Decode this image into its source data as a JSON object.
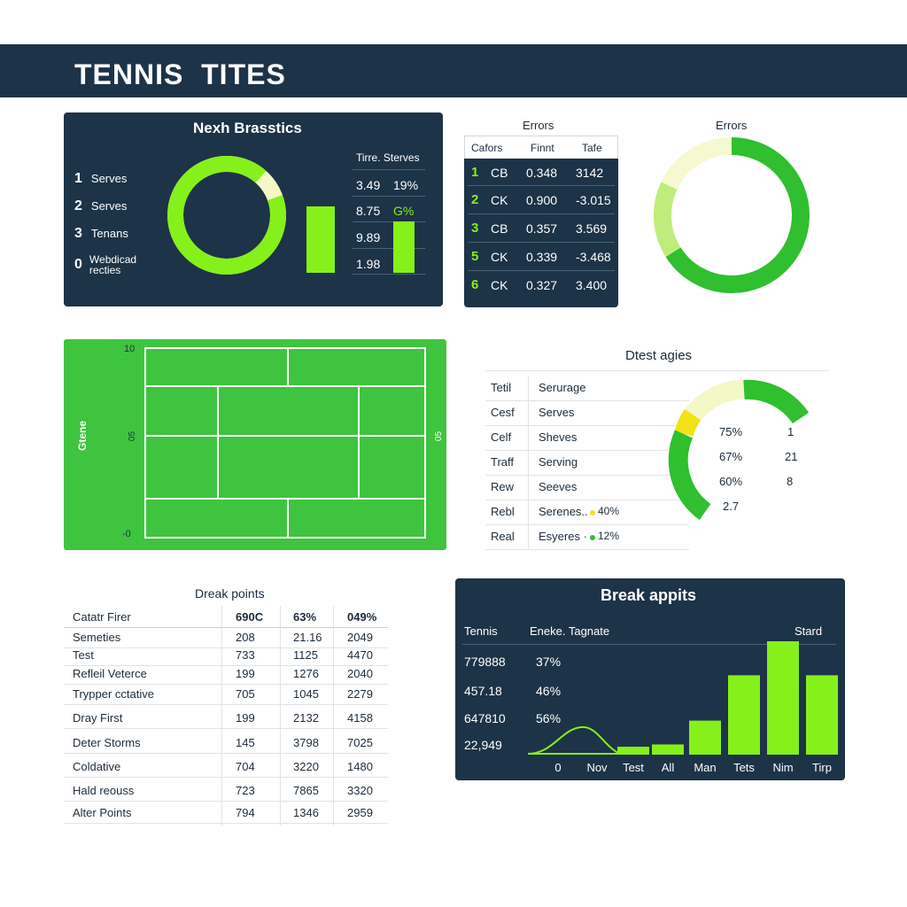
{
  "header": {
    "title": "TENNIS  TITES"
  },
  "panel_stats": {
    "title": "Nexh Brasstics",
    "items": [
      {
        "num": "1",
        "label": "Serves"
      },
      {
        "num": "2",
        "label": "Serves"
      },
      {
        "num": "3",
        "label": "Tenans"
      },
      {
        "num": "0",
        "label": "Webdicad\nrecties"
      }
    ],
    "table_header": "Tirre. Sterves",
    "rows": [
      {
        "a": "3.49",
        "b": "19%"
      },
      {
        "a": "8.75",
        "b": "G%"
      },
      {
        "a": "9.89",
        "b": ""
      },
      {
        "a": "1.98",
        "b": ""
      }
    ],
    "donut_fraction": 0.92,
    "bars": [
      0.65,
      0.5
    ],
    "colors": {
      "accent": "#86f01b",
      "accent_light": "#f4f7c6",
      "bg": "#1d3347"
    }
  },
  "panel_errors_table": {
    "title": "Errors",
    "columns": [
      "Cafors",
      "Finnt",
      "Tafe"
    ],
    "rows": [
      {
        "n": "1",
        "a": "CB",
        "b": "0.348",
        "c": "3142"
      },
      {
        "n": "2",
        "a": "CK",
        "b": "0.900",
        "c": "-3.015"
      },
      {
        "n": "3",
        "a": "CB",
        "b": "0.357",
        "c": "3.569"
      },
      {
        "n": "5",
        "a": "CK",
        "b": "0.339",
        "c": "-3.468"
      },
      {
        "n": "6",
        "a": "CK",
        "b": "0.327",
        "c": "3.400"
      }
    ]
  },
  "panel_errors_donut": {
    "title": "Errors",
    "segments": [
      {
        "fraction": 0.66,
        "color": "#2fbf2f"
      },
      {
        "fraction": 0.16,
        "color": "#bfec7a"
      },
      {
        "fraction": 0.18,
        "color": "#f6f8d2"
      }
    ]
  },
  "court": {
    "label": "Gtene",
    "top_label": "10",
    "mid_label": "05",
    "right_label": "05",
    "bottom_label": "-0",
    "color": "#3fc43f"
  },
  "dtest": {
    "title": "Dtest agies",
    "rows": [
      {
        "a": "Tetil",
        "b": "Serurage"
      },
      {
        "a": "Cesf",
        "b": "Serves"
      },
      {
        "a": "Celf",
        "b": "Sheves"
      },
      {
        "a": "Traff",
        "b": "Serving"
      },
      {
        "a": "Rew",
        "b": "Seeves"
      },
      {
        "a": "Rebl",
        "b": "Serenes..",
        "pct": "40%",
        "dot": "#f2e21a"
      },
      {
        "a": "Real",
        "b": "Esyeres ·",
        "pct": "12%",
        "dot": "#2fbf2f"
      }
    ],
    "gauge_values": [
      {
        "pct": "75%",
        "num": "1"
      },
      {
        "pct": "67%",
        "num": "21"
      },
      {
        "pct": "60%",
        "num": "8"
      },
      {
        "pct": "",
        "num": "2.7"
      }
    ]
  },
  "break_table": {
    "title": "Dreak points",
    "columns": [
      "Catatr Firer",
      "690C",
      "63%",
      "049%"
    ],
    "rows": [
      [
        "Semeties",
        "208",
        "21.16",
        "2049"
      ],
      [
        "Test",
        "733",
        "1125",
        "4470"
      ],
      [
        "Refleil Veterce",
        "199",
        "1276",
        "2040"
      ],
      [
        "Trypper cctative",
        "705",
        "1045",
        "2279"
      ],
      [
        "Dray First",
        "199",
        "2132",
        "4158"
      ],
      [
        "Deter Storms",
        "145",
        "3798",
        "7025"
      ],
      [
        "Coldative",
        "704",
        "3220",
        "1480"
      ],
      [
        "Hald reouss",
        "723",
        "7865",
        "3320"
      ],
      [
        "Alter Points",
        "794",
        "1346",
        "2959"
      ]
    ]
  },
  "break_chart": {
    "title": "Break appits",
    "col_headers": [
      "Tennis",
      "Eneke. Tagnate",
      "Stard"
    ],
    "left_values": [
      {
        "v": "779888",
        "p": "37%"
      },
      {
        "v": "457.18",
        "p": "46%"
      },
      {
        "v": "647810",
        "p": "56%"
      },
      {
        "v": "22,949",
        "p": ""
      }
    ],
    "categories": [
      "0",
      "Nov",
      "Test",
      "All",
      "Man",
      "Tets",
      "Nim",
      "Tirp"
    ],
    "bars": [
      {
        "category": "Test",
        "value": 0.07
      },
      {
        "category": "All",
        "value": 0.09
      },
      {
        "category": "Man",
        "value": 0.3
      },
      {
        "category": "Tets",
        "value": 0.7
      },
      {
        "category": "Nim",
        "value": 1.0
      },
      {
        "category": "Tirp",
        "value": 0.7
      }
    ],
    "colors": {
      "bar": "#86f01b"
    }
  }
}
